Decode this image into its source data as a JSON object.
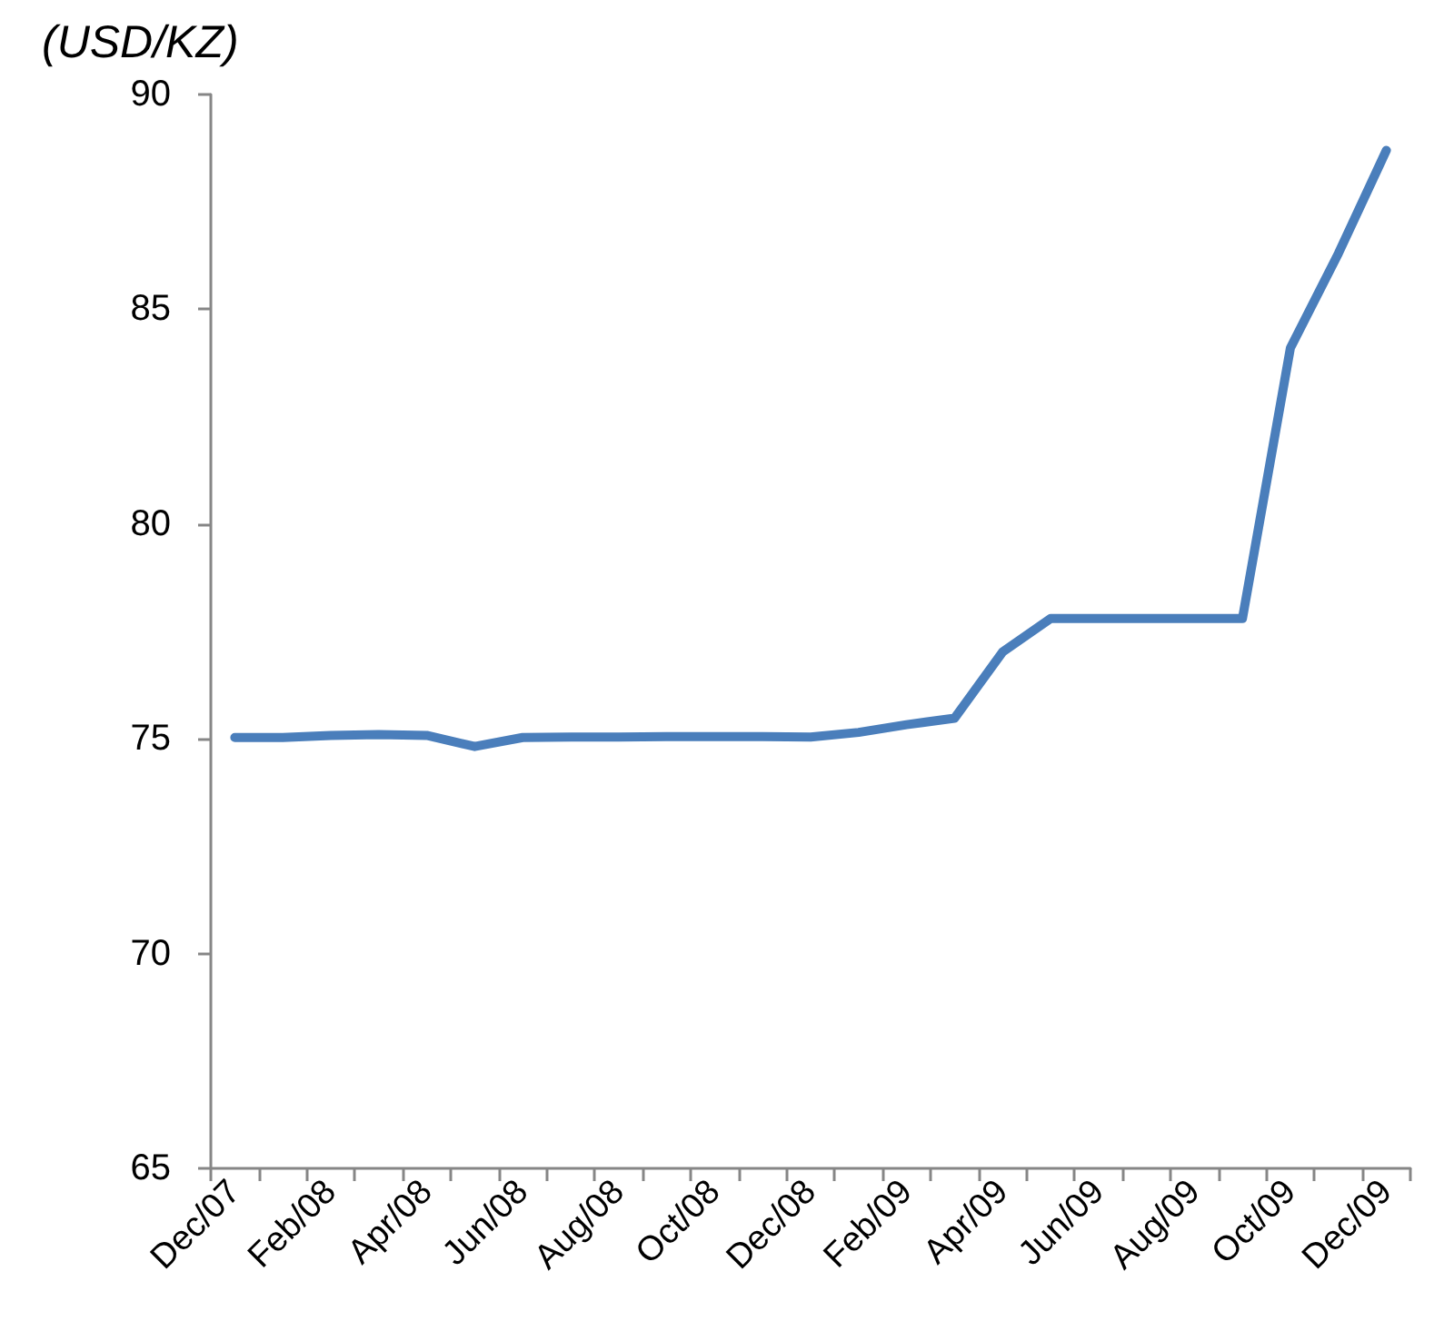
{
  "chart_data": {
    "type": "line",
    "ylabel": "(USD/KZ)",
    "categories": [
      "Dec/07",
      null,
      "Feb/08",
      null,
      "Apr/08",
      null,
      "Jun/08",
      null,
      "Aug/08",
      null,
      "Oct/08",
      null,
      "Dec/08",
      null,
      "Feb/09",
      null,
      "Apr/09",
      null,
      "Jun/09",
      null,
      "Aug/09",
      null,
      "Oct/09",
      null,
      "Dec/09"
    ],
    "series": [
      {
        "color": "#4a7ebb",
        "values": [
          75.03,
          75.03,
          75.08,
          75.1,
          75.08,
          74.82,
          75.03,
          75.04,
          75.04,
          75.05,
          75.05,
          75.05,
          75.04,
          75.15,
          75.33,
          75.48,
          77.02,
          77.8,
          77.8,
          77.8,
          77.8,
          77.8,
          84.1,
          86.3,
          88.7
        ]
      }
    ],
    "ylim": [
      65,
      90
    ],
    "yticks": [
      65,
      70,
      75,
      80,
      85,
      90
    ],
    "grid": false,
    "marker": "none",
    "line_style": "solid"
  }
}
